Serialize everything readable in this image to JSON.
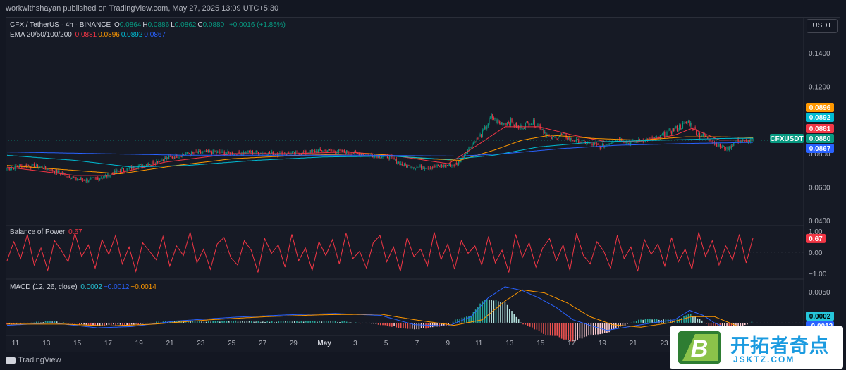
{
  "header": {
    "published": "workwithshayan published on TradingView.com, May 27, 2025 13:09 UTC+5:30",
    "unit_button": "USDT"
  },
  "legend": {
    "symbol": "CFX / TetherUS · 4h · BINANCE",
    "ohlc": [
      {
        "k": "O",
        "v": "0.0864"
      },
      {
        "k": "H",
        "v": "0.0886"
      },
      {
        "k": "L",
        "v": "0.0862"
      },
      {
        "k": "C",
        "v": "0.0880"
      }
    ],
    "change": "+0.0016 (+1.85%)",
    "ema_label": "EMA 20/50/100/200",
    "ema_values": [
      {
        "v": "0.0881",
        "color": "#f23645"
      },
      {
        "v": "0.0896",
        "color": "#ff9800"
      },
      {
        "v": "0.0892",
        "color": "#00bcd4"
      },
      {
        "v": "0.0867",
        "color": "#2962ff"
      }
    ]
  },
  "bop": {
    "label": "Balance of Power",
    "value": "0.67",
    "color": "#f23645"
  },
  "macd": {
    "label": "MACD (12, 26, close)",
    "values": [
      {
        "v": "0.0002",
        "color": "#26c6da"
      },
      {
        "v": "−0.0012",
        "color": "#2962ff"
      },
      {
        "v": "−0.0014",
        "color": "#ff9800"
      }
    ]
  },
  "colors": {
    "up": "#089981",
    "down": "#f23645",
    "ema20": "#f23645",
    "ema50": "#ff9800",
    "ema100": "#00bcd4",
    "ema200": "#2962ff",
    "bop": "#f23645",
    "macd": "#2962ff",
    "signal": "#ff9800"
  },
  "footer": {
    "brand": "TradingView"
  },
  "watermark": {
    "cn": "开拓者奇点",
    "en": "JSKTZ.COM",
    "logo_letter": "B"
  },
  "chart_data": [
    {
      "type": "candlestick",
      "title": "CFX / TetherUS · 4h · BINANCE",
      "x_ticks": [
        "11",
        "13",
        "15",
        "17",
        "19",
        "21",
        "23",
        "25",
        "27",
        "29",
        "May",
        "3",
        "5",
        "7",
        "9",
        "11",
        "13",
        "15",
        "17",
        "19",
        "21",
        "23"
      ],
      "y_ticks": [
        "0.1400",
        "0.1200",
        "0.0800",
        "0.0600",
        "0.0400"
      ],
      "ylim": [
        0.038,
        0.148
      ],
      "price_labels": [
        {
          "label": "0.0896",
          "value": 0.0896,
          "color": "#ff9800"
        },
        {
          "label": "0.0892",
          "value": 0.0892,
          "color": "#00bcd4"
        },
        {
          "label": "0.0881",
          "value": 0.0881,
          "color": "#f23645"
        },
        {
          "label": "0.0880",
          "value": 0.088,
          "color": "#089981"
        },
        {
          "label": "0.0867",
          "value": 0.0867,
          "color": "#2962ff"
        }
      ],
      "symbol_tag": "CFXUSDT",
      "close_anchors": [
        [
          0,
          0.071
        ],
        [
          15,
          0.073
        ],
        [
          30,
          0.072
        ],
        [
          45,
          0.069
        ],
        [
          60,
          0.065
        ],
        [
          72,
          0.064
        ],
        [
          85,
          0.066
        ],
        [
          100,
          0.07
        ],
        [
          120,
          0.073
        ],
        [
          140,
          0.077
        ],
        [
          160,
          0.08
        ],
        [
          180,
          0.081
        ],
        [
          200,
          0.08
        ],
        [
          215,
          0.081
        ],
        [
          235,
          0.08
        ],
        [
          255,
          0.08
        ],
        [
          280,
          0.082
        ],
        [
          300,
          0.081
        ],
        [
          320,
          0.079
        ],
        [
          338,
          0.078
        ],
        [
          350,
          0.073
        ],
        [
          362,
          0.072
        ],
        [
          375,
          0.072
        ],
        [
          390,
          0.073
        ],
        [
          398,
          0.074
        ],
        [
          410,
          0.085
        ],
        [
          420,
          0.092
        ],
        [
          428,
          0.102
        ],
        [
          435,
          0.098
        ],
        [
          445,
          0.099
        ],
        [
          452,
          0.095
        ],
        [
          462,
          0.099
        ],
        [
          470,
          0.097
        ],
        [
          480,
          0.089
        ],
        [
          490,
          0.091
        ],
        [
          500,
          0.088
        ],
        [
          515,
          0.086
        ],
        [
          525,
          0.084
        ],
        [
          540,
          0.089
        ],
        [
          550,
          0.086
        ],
        [
          560,
          0.088
        ],
        [
          575,
          0.089
        ],
        [
          585,
          0.093
        ],
        [
          595,
          0.096
        ],
        [
          602,
          0.099
        ],
        [
          610,
          0.092
        ],
        [
          620,
          0.089
        ],
        [
          630,
          0.084
        ],
        [
          637,
          0.083
        ],
        [
          645,
          0.088
        ],
        [
          652,
          0.087
        ],
        [
          659,
          0.088
        ]
      ],
      "ema_series": [
        {
          "name": "EMA 20",
          "color": "#f23645",
          "anchors": [
            [
              0,
              0.072
            ],
            [
              60,
              0.067
            ],
            [
              90,
              0.067
            ],
            [
              140,
              0.075
            ],
            [
              200,
              0.08
            ],
            [
              255,
              0.08
            ],
            [
              300,
              0.081
            ],
            [
              340,
              0.079
            ],
            [
              390,
              0.074
            ],
            [
              420,
              0.087
            ],
            [
              440,
              0.096
            ],
            [
              470,
              0.096
            ],
            [
              500,
              0.091
            ],
            [
              530,
              0.087
            ],
            [
              560,
              0.0875
            ],
            [
              590,
              0.091
            ],
            [
              605,
              0.095
            ],
            [
              630,
              0.088
            ],
            [
              659,
              0.0881
            ]
          ]
        },
        {
          "name": "EMA 50",
          "color": "#ff9800",
          "anchors": [
            [
              0,
              0.073
            ],
            [
              60,
              0.07
            ],
            [
              100,
              0.068
            ],
            [
              150,
              0.073
            ],
            [
              200,
              0.077
            ],
            [
              260,
              0.079
            ],
            [
              320,
              0.08
            ],
            [
              370,
              0.077
            ],
            [
              400,
              0.076
            ],
            [
              430,
              0.082
            ],
            [
              455,
              0.088
            ],
            [
              480,
              0.091
            ],
            [
              520,
              0.089
            ],
            [
              560,
              0.088
            ],
            [
              600,
              0.09
            ],
            [
              630,
              0.09
            ],
            [
              659,
              0.0896
            ]
          ]
        },
        {
          "name": "EMA 100",
          "color": "#00bcd4",
          "anchors": [
            [
              0,
              0.079
            ],
            [
              60,
              0.076
            ],
            [
              110,
              0.072
            ],
            [
              160,
              0.073
            ],
            [
              220,
              0.076
            ],
            [
              280,
              0.078
            ],
            [
              340,
              0.0785
            ],
            [
              390,
              0.0765
            ],
            [
              430,
              0.079
            ],
            [
              470,
              0.084
            ],
            [
              520,
              0.087
            ],
            [
              580,
              0.088
            ],
            [
              630,
              0.089
            ],
            [
              659,
              0.0892
            ]
          ]
        },
        {
          "name": "EMA 200",
          "color": "#2962ff",
          "anchors": [
            [
              0,
              0.081
            ],
            [
              80,
              0.08
            ],
            [
              160,
              0.079
            ],
            [
              240,
              0.079
            ],
            [
              320,
              0.079
            ],
            [
              400,
              0.0785
            ],
            [
              440,
              0.08
            ],
            [
              490,
              0.083
            ],
            [
              540,
              0.085
            ],
            [
              600,
              0.086
            ],
            [
              659,
              0.0867
            ]
          ]
        }
      ]
    },
    {
      "type": "line",
      "title": "Balance of Power",
      "y_ticks": [
        "1.00",
        "0.00",
        "−1.00"
      ],
      "ylim": [
        -1.2,
        1.2
      ],
      "last_value": 0.67,
      "series": [
        {
          "name": "Balance of Power",
          "values": [
            -0.4,
            0.5,
            -0.3,
            0.85,
            -0.6,
            0.2,
            -0.85,
            0.55,
            0.1,
            -0.45,
            0.9,
            -0.2,
            0.35,
            -0.75,
            0.6,
            -0.1,
            0.8,
            -0.55,
            0.25,
            -0.9,
            0.45,
            0.05,
            -0.35,
            0.75,
            -0.65,
            0.3,
            -0.15,
            0.95,
            -0.5,
            0.15,
            -0.8,
            0.4,
            0.7,
            -0.25,
            -0.6,
            0.55,
            0.1,
            -0.95,
            0.65,
            -0.05,
            0.35,
            -0.7,
            0.85,
            -0.4,
            0.2,
            -0.85,
            0.5,
            -0.15,
            0.6,
            -0.55,
            0.9,
            -0.3,
            0.05,
            -0.75,
            0.45,
            0.8,
            -0.45,
            0.25,
            -0.9,
            0.7,
            -0.2,
            0.15,
            -0.65,
            0.95,
            -0.35,
            0.4,
            -0.8,
            0.55,
            -0.05,
            0.3,
            -0.6,
            0.75,
            -0.5,
            0.1,
            -0.95,
            0.85,
            -0.25,
            0.45,
            -0.7,
            0.2,
            0.65,
            -0.4,
            0.35,
            -0.85,
            0.9,
            -0.15,
            -0.55,
            0.5,
            0.05,
            -0.75,
            0.8,
            -0.3,
            0.25,
            -0.9,
            0.6,
            -0.1,
            0.4,
            -0.65,
            0.7,
            -0.45,
            0.15,
            -0.8,
            0.95,
            -0.2,
            0.55,
            -0.6,
            0.3,
            -0.35,
            0.85,
            -0.5,
            0.67
          ]
        }
      ]
    },
    {
      "type": "line",
      "title": "MACD (12, 26, close)",
      "y_ticks": [
        "0.0050",
        "0.0002",
        "−0.0012"
      ],
      "ylim": [
        -0.0018,
        0.0068
      ],
      "series": [
        {
          "name": "MACD",
          "color": "#2962ff",
          "anchors": [
            [
              0,
              -0.0004
            ],
            [
              40,
              0.0
            ],
            [
              80,
              -0.0008
            ],
            [
              110,
              -0.0006
            ],
            [
              150,
              0.0003
            ],
            [
              200,
              0.0009
            ],
            [
              250,
              0.0013
            ],
            [
              290,
              0.0015
            ],
            [
              330,
              0.0012
            ],
            [
              360,
              -0.0003
            ],
            [
              390,
              -0.0005
            ],
            [
              410,
              0.001
            ],
            [
              425,
              0.004
            ],
            [
              440,
              0.0058
            ],
            [
              455,
              0.0052
            ],
            [
              470,
              0.004
            ],
            [
              485,
              0.0025
            ],
            [
              500,
              0.0005
            ],
            [
              515,
              -0.0004
            ],
            [
              530,
              -0.0012
            ],
            [
              550,
              -0.0006
            ],
            [
              570,
              0.0
            ],
            [
              590,
              0.0005
            ],
            [
              603,
              0.002
            ],
            [
              615,
              0.0012
            ],
            [
              625,
              0.0
            ],
            [
              640,
              -0.0012
            ],
            [
              659,
              -0.0012
            ]
          ]
        },
        {
          "name": "Signal",
          "color": "#ff9800",
          "anchors": [
            [
              0,
              -0.0002
            ],
            [
              50,
              -0.0002
            ],
            [
              90,
              -0.0005
            ],
            [
              130,
              -0.0002
            ],
            [
              180,
              0.0005
            ],
            [
              230,
              0.001
            ],
            [
              280,
              0.0013
            ],
            [
              330,
              0.0014
            ],
            [
              360,
              0.0005
            ],
            [
              395,
              -0.0004
            ],
            [
              420,
              0.0005
            ],
            [
              440,
              0.0035
            ],
            [
              455,
              0.0053
            ],
            [
              475,
              0.0048
            ],
            [
              495,
              0.0032
            ],
            [
              515,
              0.001
            ],
            [
              535,
              -0.0003
            ],
            [
              560,
              -0.0007
            ],
            [
              585,
              0.0
            ],
            [
              605,
              0.001
            ],
            [
              625,
              0.001
            ],
            [
              645,
              -0.0005
            ],
            [
              659,
              -0.0014
            ]
          ]
        }
      ],
      "histogram_note": "MACD minus Signal"
    }
  ]
}
